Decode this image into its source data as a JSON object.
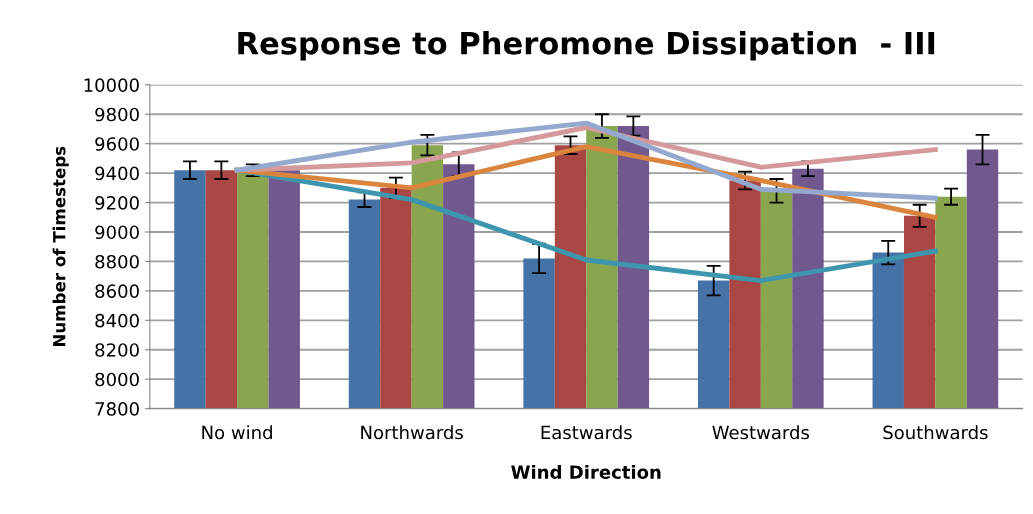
{
  "chart_data": {
    "type": "bar",
    "title": "Response to Pheromone Dissipation  - III",
    "xlabel": "Wind Direction",
    "ylabel": "Number of Timesteps",
    "categories": [
      "No wind",
      "Northwards",
      "Eastwards",
      "Westwards",
      "Southwards"
    ],
    "series": [
      {
        "color": "#4572a7",
        "values": [
          9420,
          9220,
          8820,
          8670,
          8860
        ],
        "errors": [
          60,
          50,
          100,
          100,
          80
        ]
      },
      {
        "color": "#aa4643",
        "values": [
          9420,
          9300,
          9590,
          9350,
          9110
        ],
        "errors": [
          60,
          70,
          60,
          60,
          75
        ]
      },
      {
        "color": "#89a54e",
        "values": [
          9420,
          9590,
          9720,
          9280,
          9240
        ],
        "errors": [
          40,
          70,
          80,
          80,
          55
        ]
      },
      {
        "color": "#71588f",
        "values": [
          9420,
          9460,
          9720,
          9430,
          9560
        ],
        "errors": [
          null,
          80,
          65,
          50,
          100
        ]
      },
      {
        "type": "line",
        "color": "#3d96ae",
        "values": [
          9420,
          9220,
          8810,
          8670,
          8870
        ]
      },
      {
        "type": "line",
        "color": "#db843d",
        "values": [
          9420,
          9300,
          9580,
          9350,
          9100
        ]
      },
      {
        "type": "line",
        "color": "#d4999a",
        "values": [
          9420,
          9470,
          9710,
          9440,
          9560
        ]
      },
      {
        "type": "line",
        "color": "#93a9cf",
        "values": [
          9420,
          9610,
          9740,
          9290,
          9230
        ]
      }
    ],
    "ylim": [
      7800,
      10000
    ],
    "yticks": [
      7800,
      8000,
      8200,
      8400,
      8600,
      8800,
      9000,
      9200,
      9400,
      9600,
      9800,
      10000
    ],
    "grid": "y",
    "legend": false
  }
}
